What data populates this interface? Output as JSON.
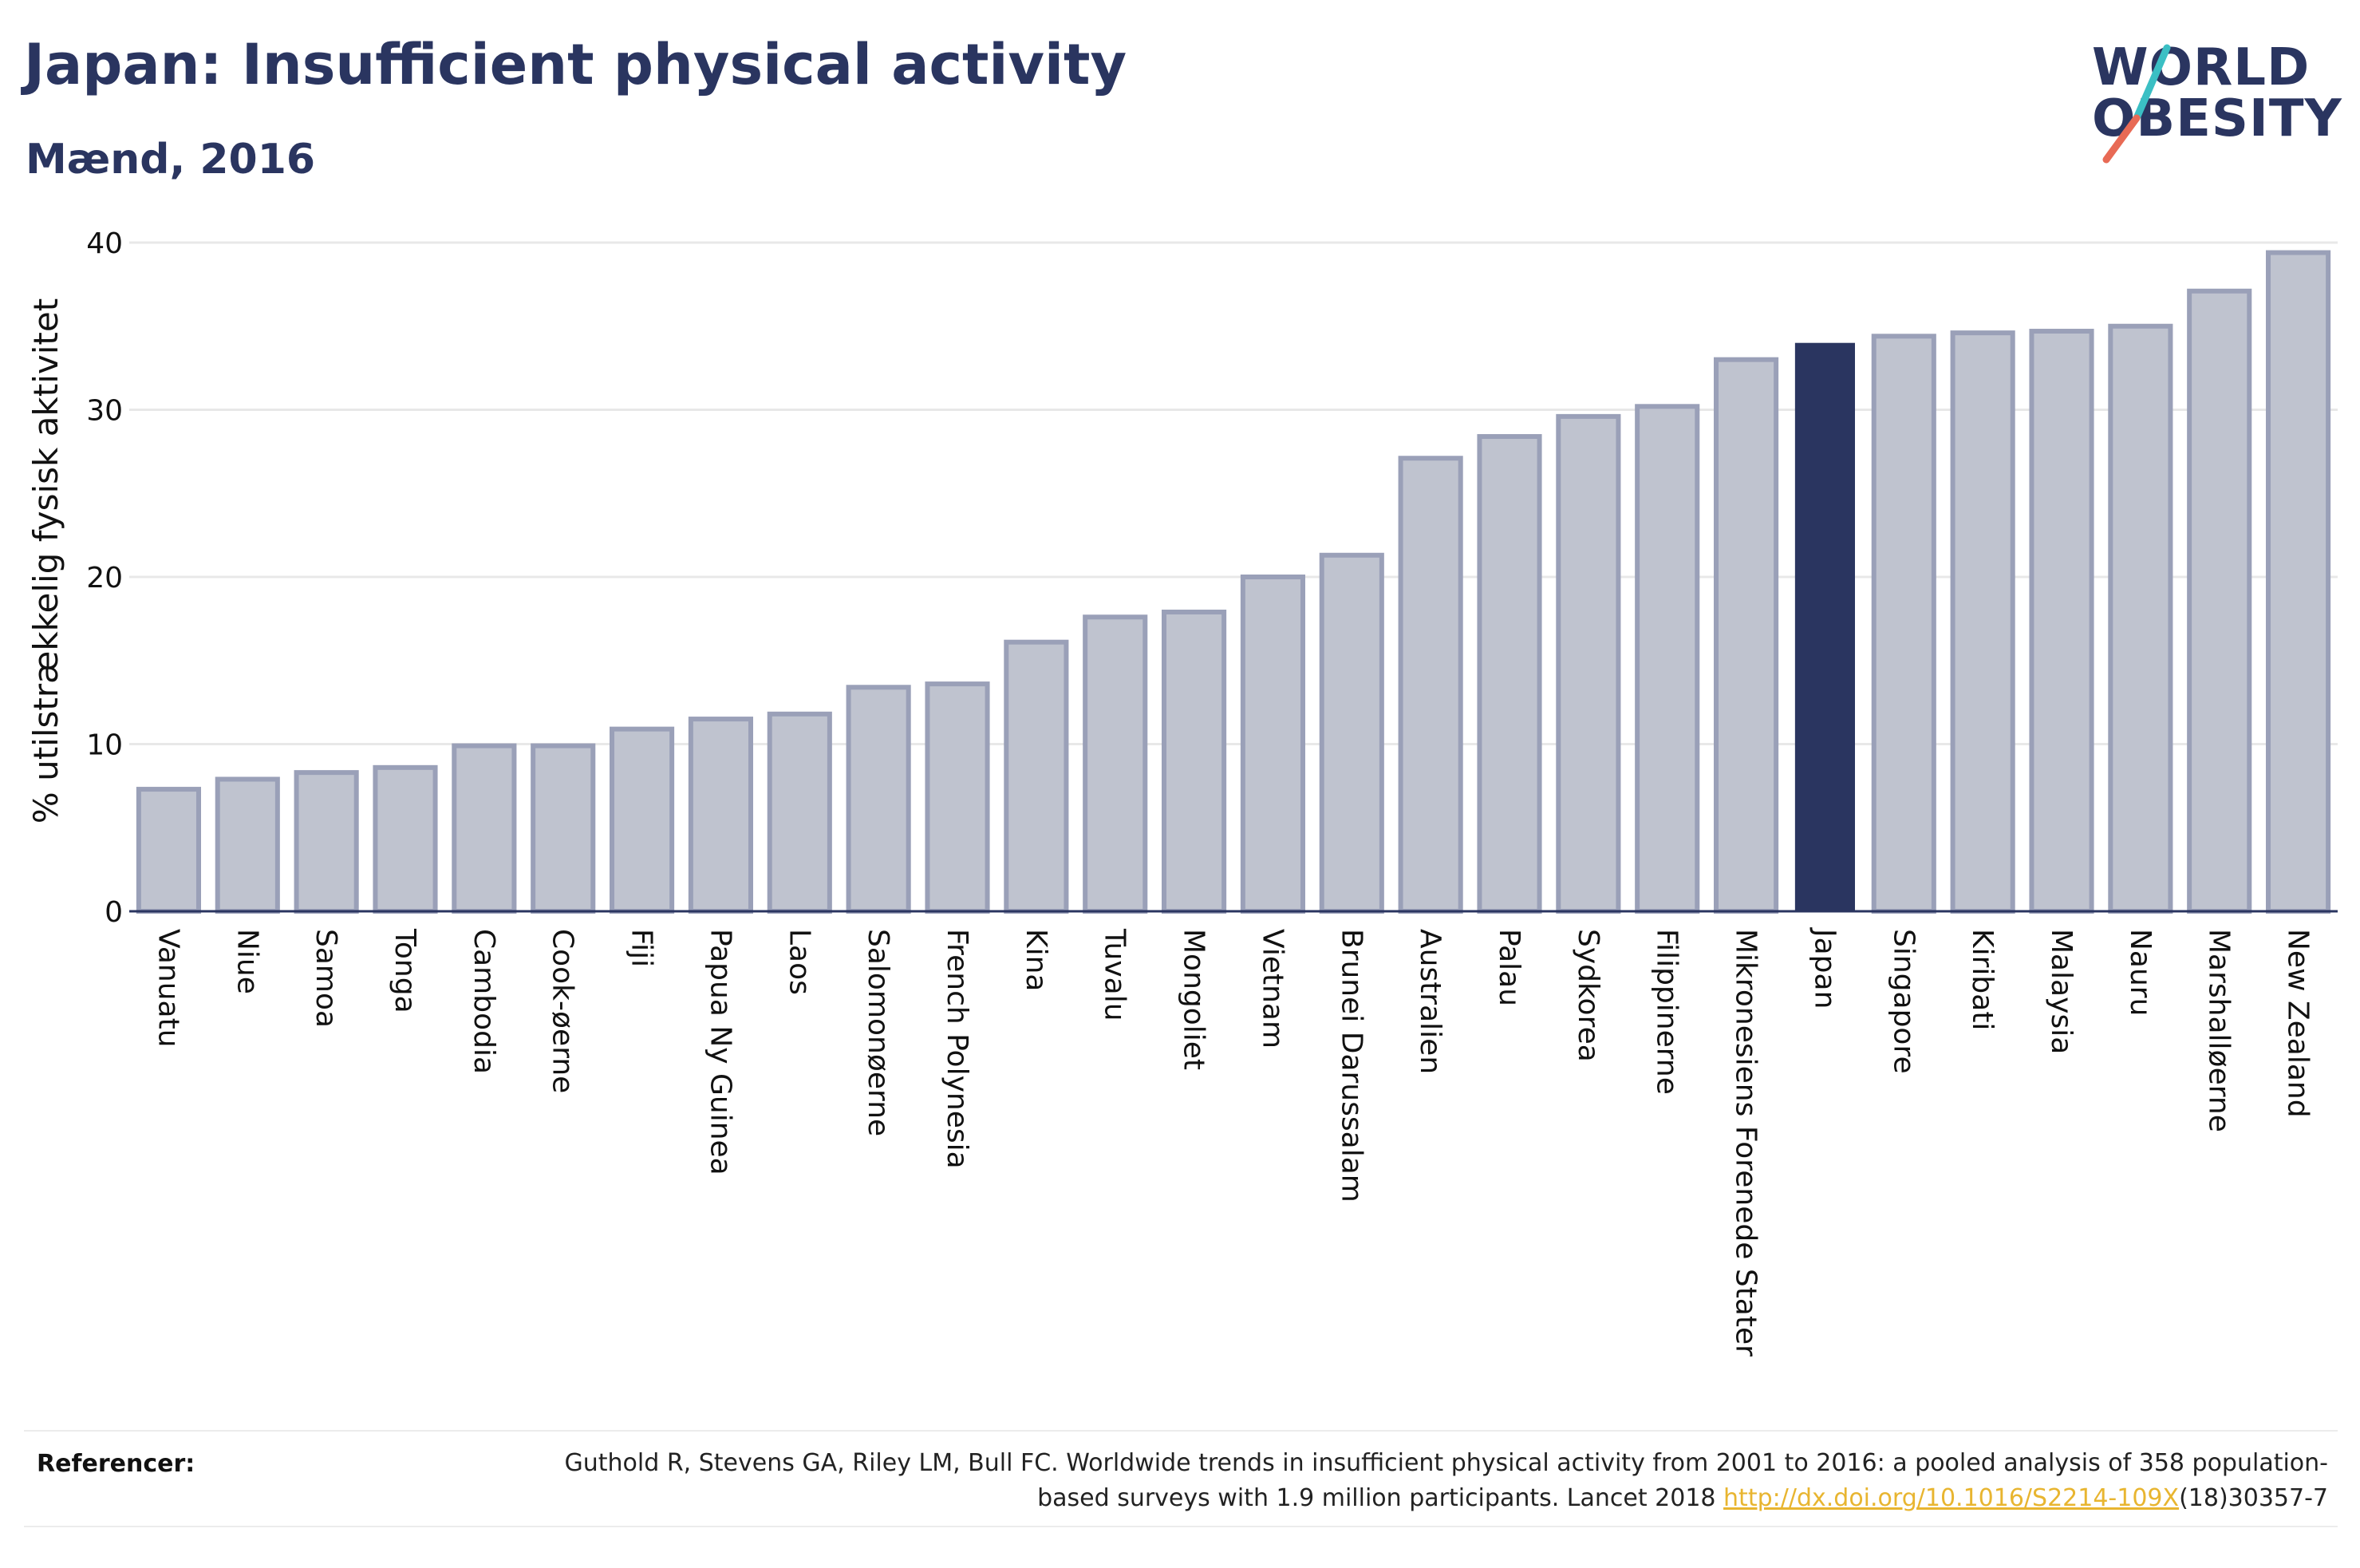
{
  "header": {
    "title": "Japan: Insufficient physical activity",
    "subtitle": "Mænd, 2016"
  },
  "logo": {
    "line1": "WORLD",
    "line2": "OBESITY",
    "colors": {
      "text": "#2a3560",
      "slash_top": "#3bbfc4",
      "slash_bottom": "#e86a55"
    }
  },
  "colors": {
    "bar_fill": "#bfc3cf",
    "bar_edge": "#9aa0b8",
    "highlight_fill": "#2a3560",
    "grid": "#e8e8e8",
    "axis": "#2a3560"
  },
  "chart_data": {
    "type": "bar",
    "title": "Japan: Insufficient physical activity",
    "subtitle": "Mænd, 2016",
    "ylabel": "% utilstrækkelig fysisk aktivitet",
    "xlabel": "",
    "ylim": [
      0,
      40
    ],
    "yticks": [
      0,
      10,
      20,
      30,
      40
    ],
    "grid": true,
    "highlight": "Japan",
    "categories": [
      "Vanuatu",
      "Niue",
      "Samoa",
      "Tonga",
      "Cambodia",
      "Cook-øerne",
      "Fiji",
      "Papua Ny Guinea",
      "Laos",
      "Salomonøerne",
      "French Polynesia",
      "Kina",
      "Tuvalu",
      "Mongoliet",
      "Vietnam",
      "Brunei Darussalam",
      "Australien",
      "Palau",
      "Sydkorea",
      "Filippinerne",
      "Mikronesiens Forenede Stater",
      "Japan",
      "Singapore",
      "Kiribati",
      "Malaysia",
      "Nauru",
      "Marshalløerne",
      "New Zealand"
    ],
    "values": [
      7.3,
      7.9,
      8.3,
      8.6,
      9.9,
      9.9,
      10.9,
      11.5,
      11.8,
      13.4,
      13.6,
      16.1,
      17.6,
      17.9,
      20.0,
      21.3,
      27.1,
      28.4,
      29.6,
      30.2,
      33.0,
      34.0,
      34.4,
      34.6,
      34.7,
      35.0,
      37.1,
      39.4
    ]
  },
  "references": {
    "label": "Referencer:",
    "text_before": "Guthold R, Stevens GA, Riley LM, Bull FC. Worldwide trends in insufficient physical activity from 2001 to 2016: a pooled analysis of 358 population-based surveys with 1.9 million participants. Lancet 2018 ",
    "link": "http://dx.doi.org/10.1016/S2214-109X",
    "text_after": "(18)30357-7"
  }
}
